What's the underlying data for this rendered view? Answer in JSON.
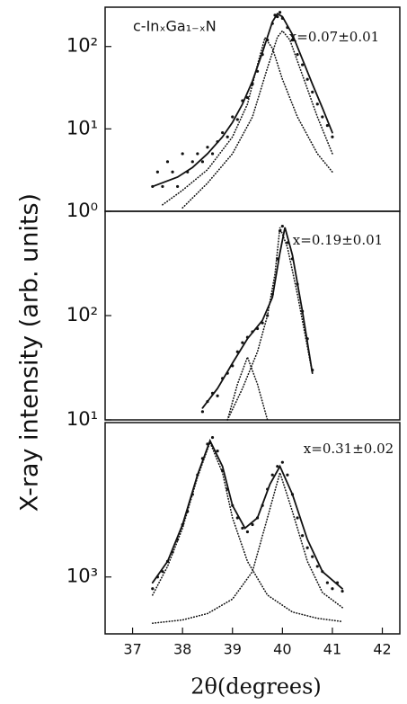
{
  "chart_data": [
    {
      "type": "line",
      "log_y": true,
      "xlim": [
        36.45,
        42.35
      ],
      "ylim": [
        1,
        300
      ],
      "yticks": [
        {
          "value": 1,
          "label": "10⁰"
        },
        {
          "value": 10,
          "label": "10¹"
        },
        {
          "value": 100,
          "label": "10²"
        }
      ],
      "annotations": [
        {
          "text": "c-InₓGa₁₋ₓN",
          "style": "sans"
        },
        {
          "text": "x=0.07±0.01",
          "style": "serif"
        }
      ],
      "series": [
        {
          "style": "dots",
          "color": "#111111",
          "x": [
            37.4,
            37.5,
            37.6,
            37.7,
            37.8,
            37.9,
            38.0,
            38.1,
            38.2,
            38.3,
            38.4,
            38.5,
            38.6,
            38.7,
            38.8,
            38.9,
            39.0,
            39.1,
            39.2,
            39.3,
            39.4,
            39.5,
            39.6,
            39.7,
            39.8,
            39.85,
            39.9,
            39.95,
            40.0,
            40.1,
            40.2,
            40.3,
            40.4,
            40.5,
            40.6,
            40.7,
            40.8,
            40.9,
            41.0
          ],
          "values": [
            2,
            3,
            2,
            4,
            3,
            2,
            5,
            3,
            4,
            5,
            4,
            6,
            5,
            7,
            9,
            8,
            14,
            13,
            22,
            24,
            35,
            50,
            80,
            120,
            190,
            240,
            230,
            260,
            220,
            170,
            120,
            80,
            60,
            40,
            28,
            20,
            14,
            11,
            8
          ]
        },
        {
          "style": "solid",
          "color": "#111111",
          "x": [
            37.4,
            37.9,
            38.2,
            38.5,
            38.8,
            39.0,
            39.2,
            39.4,
            39.6,
            39.8,
            39.9,
            40.0,
            40.2,
            40.4,
            40.6,
            40.8,
            41.0
          ],
          "values": [
            2,
            2.6,
            3.4,
            5,
            8,
            12,
            20,
            38,
            85,
            200,
            250,
            230,
            140,
            70,
            35,
            18,
            9
          ]
        },
        {
          "style": "dotted",
          "color": "#111111",
          "x": [
            37.6,
            38.0,
            38.5,
            39.0,
            39.3,
            39.5,
            39.65,
            39.8,
            40.0,
            40.3,
            40.7,
            41.0
          ],
          "values": [
            1.2,
            1.8,
            3.2,
            8,
            20,
            60,
            128,
            95,
            40,
            14,
            5,
            3
          ]
        },
        {
          "style": "dotted",
          "color": "#111111",
          "x": [
            38.0,
            38.5,
            39.0,
            39.4,
            39.7,
            39.9,
            40.0,
            40.15,
            40.4,
            40.7,
            41.0
          ],
          "values": [
            1.1,
            2.2,
            5,
            14,
            55,
            130,
            155,
            120,
            45,
            14,
            5
          ]
        }
      ]
    },
    {
      "type": "line",
      "log_y": true,
      "xlim": [
        36.45,
        42.35
      ],
      "ylim": [
        10,
        1000
      ],
      "ylabel": "X-ray intensity (arb. units)",
      "yticks": [
        {
          "value": 10,
          "label": "10¹"
        },
        {
          "value": 100,
          "label": "10²"
        }
      ],
      "annotations": [
        {
          "text": "x=0.19±0.01",
          "style": "serif"
        }
      ],
      "series": [
        {
          "style": "dots",
          "color": "#111111",
          "x": [
            38.4,
            38.5,
            38.6,
            38.7,
            38.8,
            38.9,
            39.0,
            39.1,
            39.2,
            39.3,
            39.4,
            39.5,
            39.6,
            39.7,
            39.8,
            39.9,
            39.95,
            40.0,
            40.1,
            40.2,
            40.3,
            40.4,
            40.5,
            40.6
          ],
          "values": [
            12,
            15,
            18,
            17,
            25,
            28,
            33,
            45,
            55,
            62,
            70,
            75,
            85,
            100,
            160,
            350,
            650,
            720,
            500,
            350,
            200,
            110,
            60,
            30
          ]
        },
        {
          "style": "solid",
          "color": "#111111",
          "x": [
            38.4,
            38.7,
            39.0,
            39.3,
            39.6,
            39.8,
            39.95,
            40.05,
            40.2,
            40.4,
            40.6
          ],
          "values": [
            13,
            20,
            35,
            60,
            90,
            150,
            400,
            700,
            380,
            110,
            28
          ]
        },
        {
          "style": "dotted",
          "color": "#111111",
          "x": [
            38.9,
            39.1,
            39.3,
            39.5,
            39.7
          ],
          "values": [
            10,
            22,
            40,
            22,
            10
          ]
        },
        {
          "style": "dotted",
          "color": "#111111",
          "x": [
            38.9,
            39.2,
            39.5,
            39.7,
            39.85,
            39.95,
            40.1,
            40.3,
            40.5,
            40.6
          ],
          "values": [
            10,
            20,
            45,
            100,
            250,
            700,
            450,
            160,
            50,
            28
          ]
        }
      ]
    },
    {
      "type": "line",
      "log_y": true,
      "xlim": [
        36.45,
        42.35
      ],
      "ylim": [
        600,
        4000
      ],
      "xlabel": "2θ(degrees)",
      "xticks": [
        37,
        38,
        39,
        40,
        41,
        42
      ],
      "yticks": [
        {
          "value": 1000,
          "label": "10³"
        }
      ],
      "annotations": [
        {
          "text": "x=0.31±0.02",
          "style": "serif"
        }
      ],
      "series": [
        {
          "style": "dots",
          "color": "#111111",
          "x": [
            37.4,
            37.5,
            37.6,
            37.7,
            37.8,
            37.9,
            38.0,
            38.1,
            38.2,
            38.3,
            38.4,
            38.5,
            38.6,
            38.7,
            38.8,
            38.9,
            39.0,
            39.1,
            39.2,
            39.3,
            39.4,
            39.5,
            39.6,
            39.7,
            39.8,
            39.9,
            40.0,
            40.1,
            40.2,
            40.3,
            40.4,
            40.5,
            40.6,
            40.7,
            40.8,
            40.9,
            41.0,
            41.1,
            41.2
          ],
          "values": [
            900,
            1000,
            1050,
            1150,
            1250,
            1400,
            1600,
            1800,
            2100,
            2500,
            2900,
            3300,
            3500,
            3100,
            2600,
            2200,
            1900,
            1700,
            1550,
            1500,
            1600,
            1700,
            1900,
            2200,
            2500,
            2700,
            2800,
            2500,
            2100,
            1700,
            1450,
            1300,
            1200,
            1100,
            1050,
            950,
            900,
            950,
            880
          ]
        },
        {
          "style": "solid",
          "color": "#111111",
          "x": [
            37.4,
            37.7,
            38.0,
            38.3,
            38.55,
            38.8,
            39.0,
            39.25,
            39.5,
            39.75,
            39.95,
            40.2,
            40.5,
            40.8,
            41.2
          ],
          "values": [
            950,
            1150,
            1600,
            2500,
            3400,
            2700,
            1900,
            1550,
            1700,
            2300,
            2700,
            2100,
            1400,
            1050,
            900
          ]
        },
        {
          "style": "dotted",
          "color": "#111111",
          "x": [
            37.4,
            37.7,
            38.0,
            38.3,
            38.55,
            38.8,
            39.0,
            39.3,
            39.7,
            40.2,
            40.7,
            41.2
          ],
          "values": [
            850,
            1100,
            1550,
            2450,
            3350,
            2550,
            1700,
            1150,
            850,
            730,
            690,
            670
          ]
        },
        {
          "style": "dotted",
          "color": "#111111",
          "x": [
            37.4,
            38.0,
            38.5,
            39.0,
            39.4,
            39.7,
            39.95,
            40.2,
            40.5,
            40.8,
            41.2
          ],
          "values": [
            660,
            680,
            720,
            820,
            1050,
            1700,
            2550,
            1800,
            1150,
            870,
            760
          ]
        }
      ]
    }
  ]
}
